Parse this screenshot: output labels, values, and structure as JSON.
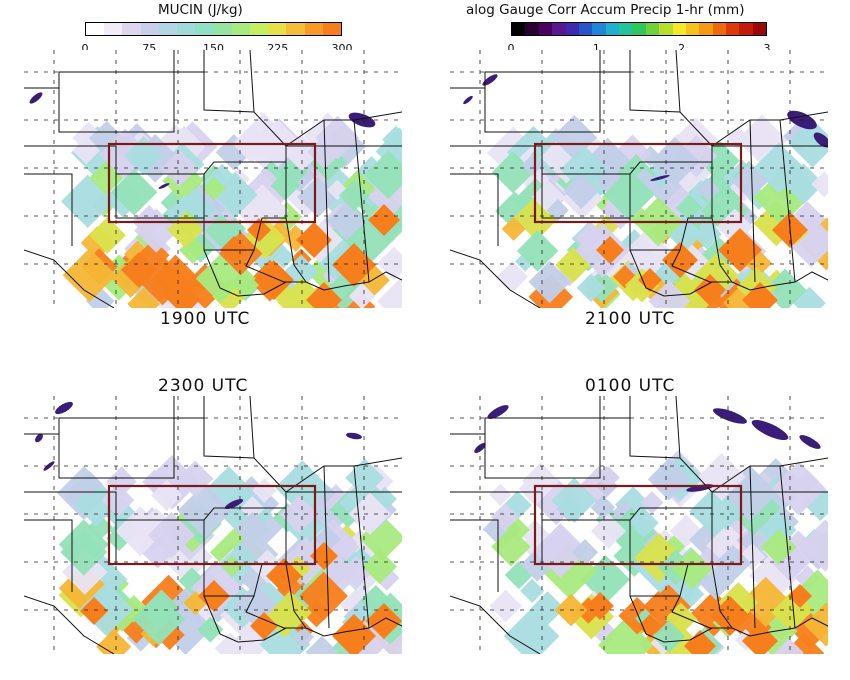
{
  "mucin_colorbar": {
    "title": "MUCIN (J/kg)",
    "ticks": [
      "0",
      "75",
      "150",
      "225",
      "300"
    ],
    "colors": [
      "#ffffff",
      "#f1ecf8",
      "#dcd6ee",
      "#c8cfe8",
      "#b3d6e6",
      "#9fdcd9",
      "#8fe0c6",
      "#95e4a2",
      "#a9ea7e",
      "#c6ee5e",
      "#e8e04a",
      "#f5bd38",
      "#f79a2a",
      "#f77e1c"
    ]
  },
  "precip_colorbar": {
    "title": "alog Gauge Corr Accum Precip 1-hr (mm)",
    "ticks": [
      "0",
      "1",
      "2",
      "3"
    ],
    "colors": [
      "#000000",
      "#2a0033",
      "#4b0060",
      "#5a1890",
      "#3d2bb0",
      "#2856c8",
      "#1f86d8",
      "#1fb0d0",
      "#22c49a",
      "#2fc85c",
      "#6fd23a",
      "#b8df2c",
      "#f4ea2a",
      "#f8c21e",
      "#f59a14",
      "#ee6a10",
      "#dd3a0c",
      "#c41a0a",
      "#9a0808"
    ]
  },
  "panels": [
    {
      "label": "1900 UTC"
    },
    {
      "label": "2100 UTC"
    },
    {
      "label": "2300 UTC"
    },
    {
      "label": "0100 UTC"
    }
  ],
  "colors": {
    "box": "#7a1b1b",
    "orange": "#f77e1c",
    "purple": "#3a1d78"
  }
}
